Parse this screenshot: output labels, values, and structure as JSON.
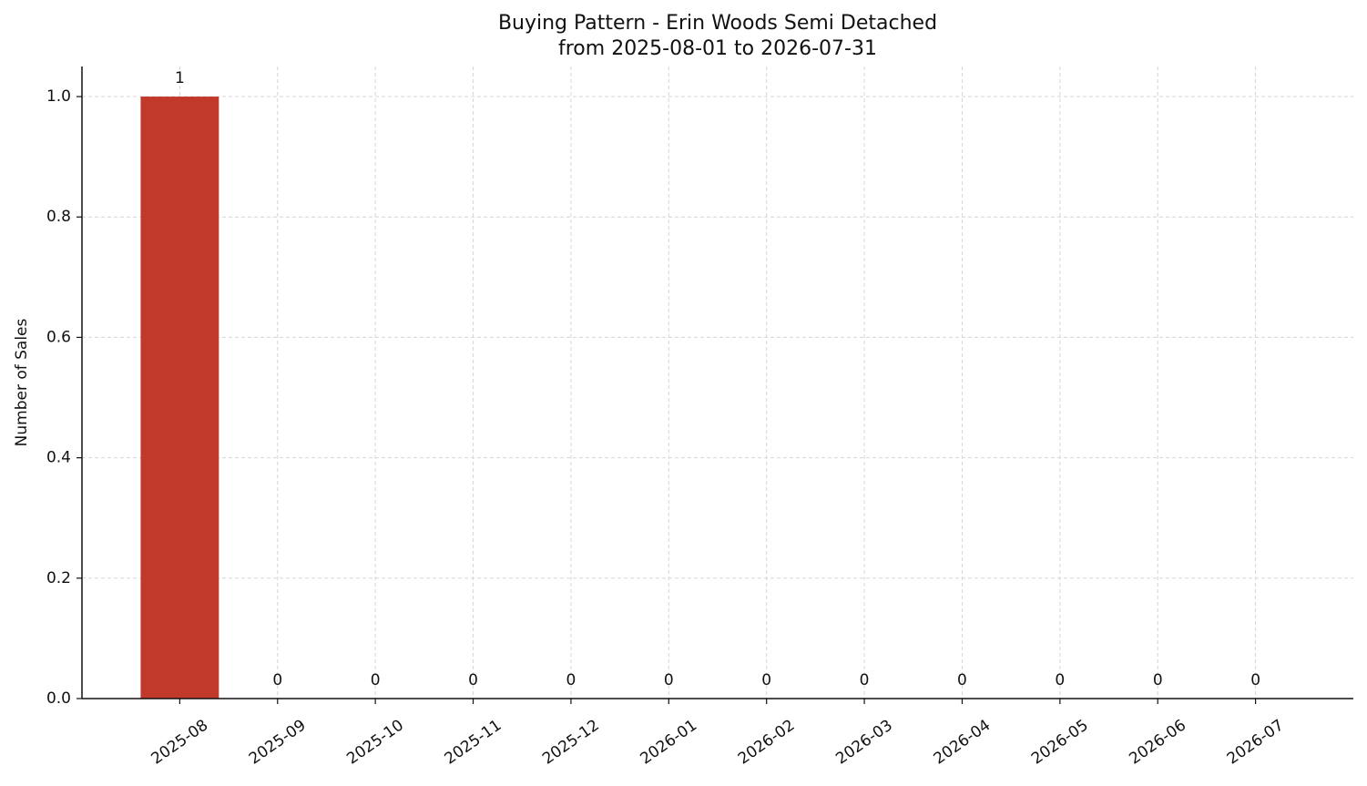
{
  "chart_data": {
    "type": "bar",
    "title": "Buying Pattern - Erin Woods Semi Detached",
    "subtitle": "from 2025-08-01 to 2026-07-31",
    "y_label": "Number of Sales",
    "categories": [
      "2025-08",
      "2025-09",
      "2025-10",
      "2025-11",
      "2025-12",
      "2026-01",
      "2026-02",
      "2026-03",
      "2026-04",
      "2026-05",
      "2026-06",
      "2026-07"
    ],
    "values": [
      1,
      0,
      0,
      0,
      0,
      0,
      0,
      0,
      0,
      0,
      0,
      0
    ],
    "color": "#c0392b",
    "ylim": [
      0,
      1.05
    ],
    "yticks": [
      {
        "value": 0,
        "label": "0.0"
      },
      0.2,
      0.4,
      0.6,
      0.8,
      {
        "value": 1,
        "label": "1.0"
      }
    ],
    "grid": true
  }
}
